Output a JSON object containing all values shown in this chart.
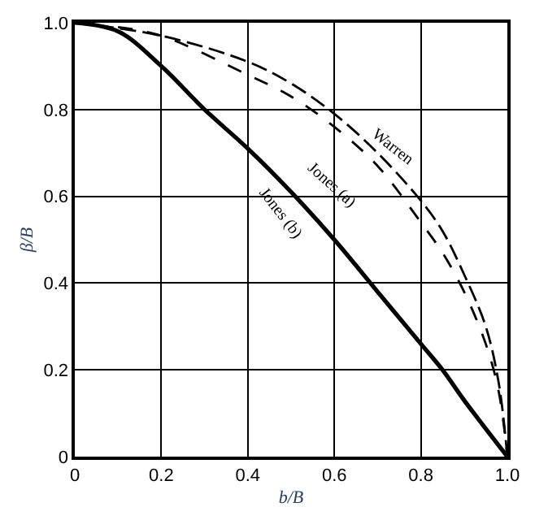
{
  "chart_data": {
    "type": "line",
    "xlabel": "b/B",
    "ylabel": "β/B",
    "xlim": [
      0,
      1
    ],
    "ylim": [
      0,
      1
    ],
    "xticks": [
      0,
      0.2,
      0.4,
      0.6,
      0.8,
      {
        "value": 1,
        "label": "1.0"
      }
    ],
    "yticks": [
      0,
      0.2,
      0.4,
      0.6,
      0.8,
      {
        "value": 1,
        "label": "1.0"
      }
    ],
    "grid": true,
    "marker": "none",
    "series": [
      {
        "color": "#000000",
        "line_style": "dashed",
        "x": [
          0,
          0.2,
          0.4,
          0.5,
          0.6,
          0.7,
          0.8,
          0.85,
          0.9,
          0.95,
          0.98,
          1
        ],
        "values": [
          1,
          0.97,
          0.91,
          0.86,
          0.79,
          0.7,
          0.59,
          0.52,
          0.42,
          0.3,
          0.17,
          0
        ]
      },
      {
        "color": "#000000",
        "line_style": "dashed",
        "x": [
          0.1,
          0.2,
          0.4,
          0.5,
          0.6,
          0.7,
          0.8,
          0.85,
          0.9,
          0.95,
          0.98,
          1
        ],
        "values": [
          0.99,
          0.97,
          0.88,
          0.83,
          0.76,
          0.67,
          0.54,
          0.47,
          0.38,
          0.26,
          0.15,
          0
        ]
      },
      {
        "color": "#000000",
        "line_style": "solid",
        "x": [
          0,
          0.1,
          0.2,
          0.3,
          0.4,
          0.5,
          0.6,
          0.7,
          0.8,
          0.85,
          0.9,
          1
        ],
        "values": [
          1,
          0.98,
          0.9,
          0.8,
          0.71,
          0.61,
          0.5,
          0.38,
          0.26,
          0.2,
          0.13,
          0
        ]
      }
    ],
    "annotations": [
      "Warren",
      "Jones (a)",
      "Jones (b)"
    ]
  }
}
